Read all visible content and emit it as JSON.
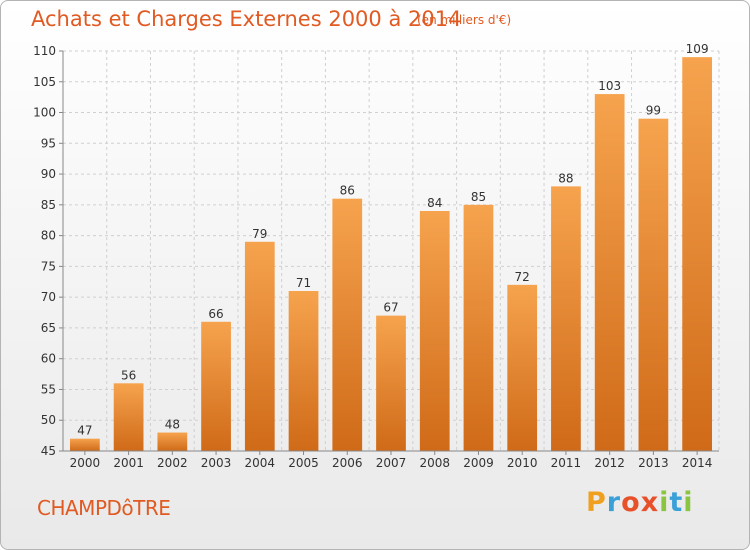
{
  "header": {
    "title": "Achats et Charges Externes 2000 à 2014",
    "unit_note": "(en milliers d'€)"
  },
  "footer": {
    "commune": "CHAMPDôTRE",
    "brand_letters": [
      "P",
      "r",
      "o",
      "x",
      "i",
      "t",
      "i"
    ]
  },
  "colors": {
    "bar_top": "#f6a34e",
    "bar_bottom": "#cf6a18",
    "title": "#e05a22",
    "grid": "#d0d0d0"
  },
  "chart_data": {
    "type": "bar",
    "categories": [
      "2000",
      "2001",
      "2002",
      "2003",
      "2004",
      "2005",
      "2006",
      "2007",
      "2008",
      "2009",
      "2010",
      "2011",
      "2012",
      "2013",
      "2014"
    ],
    "values": [
      47,
      56,
      48,
      66,
      79,
      71,
      86,
      67,
      84,
      85,
      72,
      88,
      103,
      99,
      109
    ],
    "title": "Achats et Charges Externes 2000 à 2014",
    "ylim": [
      45,
      110
    ],
    "yticks": [
      45,
      50,
      55,
      60,
      65,
      70,
      75,
      80,
      85,
      90,
      95,
      100,
      105,
      110
    ],
    "grid": true,
    "data_labels": true
  }
}
